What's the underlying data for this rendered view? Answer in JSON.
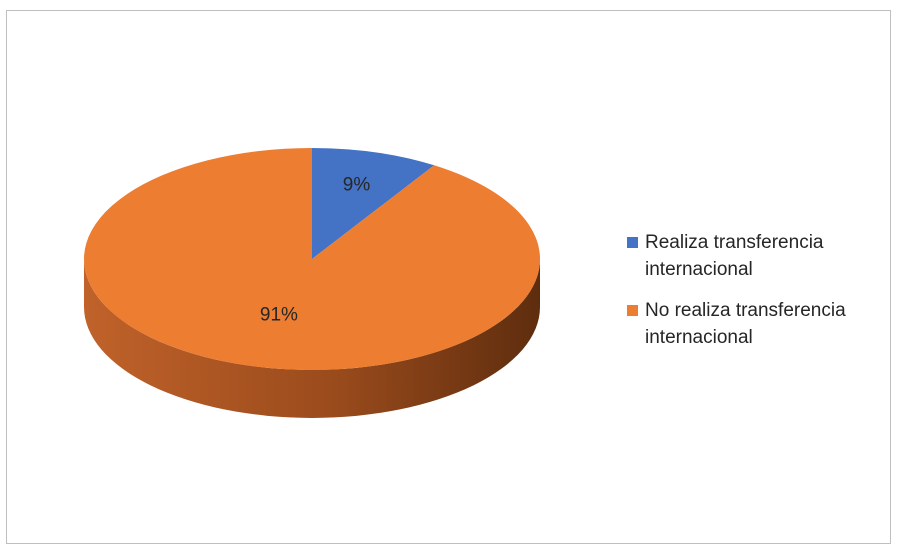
{
  "chart_data": {
    "type": "pie",
    "title": "",
    "categories": [
      "Realiza transferencia internacional",
      "No realiza transferencia internacional"
    ],
    "values": [
      9,
      91
    ],
    "data_labels": [
      "9%",
      "91%"
    ],
    "colors": [
      "#4472C4",
      "#ED7D31"
    ],
    "side_colors": [
      "#2F5597",
      "#A0501E"
    ],
    "style": "3d-pie",
    "legend_position": "right"
  }
}
